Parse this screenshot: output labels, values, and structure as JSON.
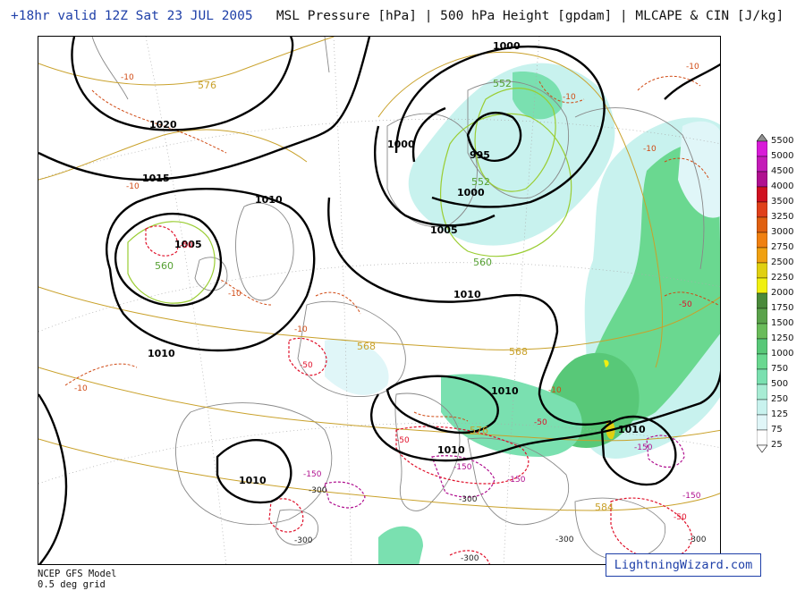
{
  "header": {
    "valid_text": "+18hr valid 12Z Sat 23 JUL 2005",
    "fields_text": "MSL Pressure [hPa] | 500 hPa Height [gpdam] | MLCAPE & CIN [J/kg]"
  },
  "isobar_labels": [
    "1020",
    "1015",
    "1010",
    "1005",
    "1000",
    "995",
    "1000",
    "1005",
    "1010",
    "1010",
    "1010",
    "1010",
    "1010",
    "1010",
    "1005"
  ],
  "height_labels": [
    "576",
    "552",
    "552",
    "560",
    "560",
    "568",
    "568",
    "576",
    "584"
  ],
  "cin_labels": [
    "-10",
    "-50",
    "-150",
    "-300"
  ],
  "legend": {
    "levels": [
      "5500",
      "5000",
      "4500",
      "4000",
      "3500",
      "3250",
      "3000",
      "2750",
      "2500",
      "2250",
      "2000",
      "1750",
      "1500",
      "1250",
      "1000",
      "750",
      "500",
      "250",
      "125",
      "75",
      "25"
    ],
    "colors": [
      "#909090",
      "#d81bd8",
      "#c41bb8",
      "#b01090",
      "#d01020",
      "#e0401a",
      "#e06010",
      "#f08010",
      "#f0a010",
      "#e0d010",
      "#f0f010",
      "#4a8a3a",
      "#5aa24a",
      "#6abc5a",
      "#58c878",
      "#6ad890",
      "#7ae0b0",
      "#a8ecd4",
      "#c8f2ee",
      "#e0f6f8",
      "#ffffff"
    ]
  },
  "footer": {
    "model": "NCEP GFS Model",
    "grid": "0.5 deg grid",
    "brand": "LightningWizard.com"
  }
}
